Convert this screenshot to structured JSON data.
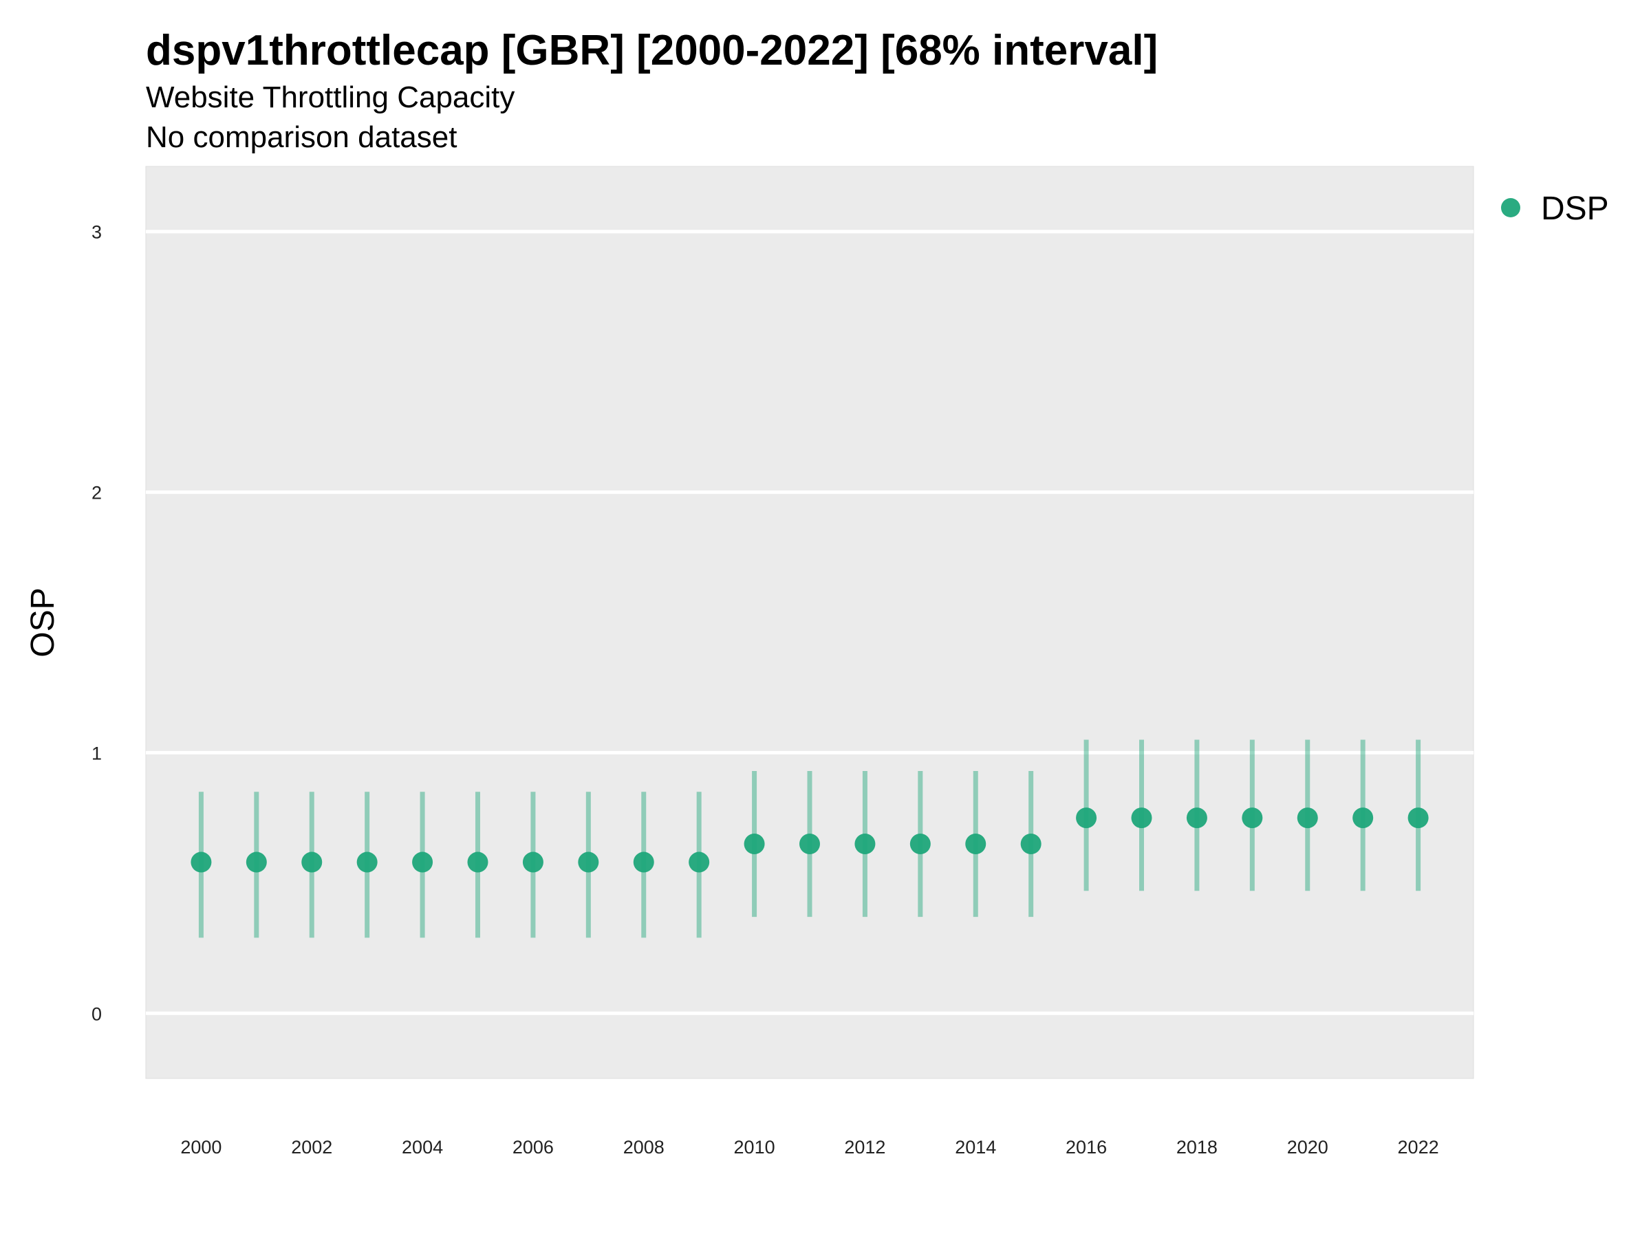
{
  "chart_data": {
    "type": "scatter",
    "title": "dspv1throttlecap [GBR] [2000-2022] [68% interval]",
    "subtitle": "Website Throttling Capacity",
    "subtitle2": "No comparison dataset",
    "xlabel": "",
    "ylabel": "OSP",
    "ylim": [
      -0.25,
      3.25
    ],
    "xlim": [
      1999,
      2023
    ],
    "yticks": [
      0,
      1,
      2,
      3
    ],
    "xticks": [
      2000,
      2002,
      2004,
      2006,
      2008,
      2010,
      2012,
      2014,
      2016,
      2018,
      2020,
      2022
    ],
    "grid": true,
    "legend_position": "top-right",
    "series": [
      {
        "name": "DSP",
        "color": "#1fa67a",
        "x": [
          2000,
          2001,
          2002,
          2003,
          2004,
          2005,
          2006,
          2007,
          2008,
          2009,
          2010,
          2011,
          2012,
          2013,
          2014,
          2015,
          2016,
          2017,
          2018,
          2019,
          2020,
          2021,
          2022
        ],
        "y": [
          0.58,
          0.58,
          0.58,
          0.58,
          0.58,
          0.58,
          0.58,
          0.58,
          0.58,
          0.58,
          0.65,
          0.65,
          0.65,
          0.65,
          0.65,
          0.65,
          0.75,
          0.75,
          0.75,
          0.75,
          0.75,
          0.75,
          0.75
        ],
        "lower": [
          0.29,
          0.29,
          0.29,
          0.29,
          0.29,
          0.29,
          0.29,
          0.29,
          0.29,
          0.29,
          0.37,
          0.37,
          0.37,
          0.37,
          0.37,
          0.37,
          0.47,
          0.47,
          0.47,
          0.47,
          0.47,
          0.47,
          0.47
        ],
        "upper": [
          0.85,
          0.85,
          0.85,
          0.85,
          0.85,
          0.85,
          0.85,
          0.85,
          0.85,
          0.85,
          0.93,
          0.93,
          0.93,
          0.93,
          0.93,
          0.93,
          1.05,
          1.05,
          1.05,
          1.05,
          1.05,
          1.05,
          1.05
        ]
      }
    ]
  }
}
